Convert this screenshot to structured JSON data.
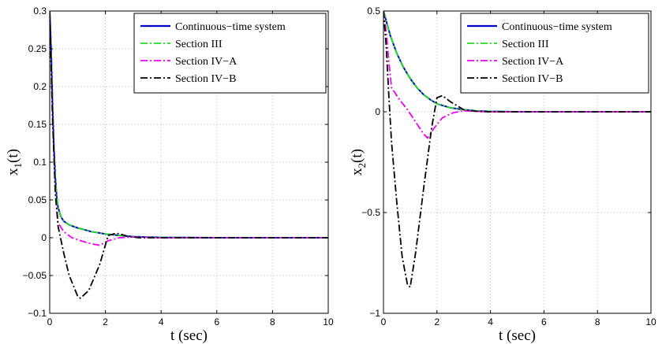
{
  "chart_data": [
    {
      "type": "line",
      "xlabel": "t (sec)",
      "ylabel": "x",
      "ylabel_sub": "1",
      "ylabel_tail": "(t)",
      "xlim": [
        0,
        10
      ],
      "ylim": [
        -0.1,
        0.3
      ],
      "xticks": [
        0,
        2,
        4,
        6,
        8,
        10
      ],
      "xtick_labels": [
        "0",
        "2",
        "4",
        "6",
        "8",
        "10"
      ],
      "yticks": [
        -0.1,
        -0.05,
        0,
        0.05,
        0.1,
        0.15,
        0.2,
        0.25,
        0.3
      ],
      "ytick_labels": [
        "−0.1",
        "−0.05",
        "0",
        "0.05",
        "0.1",
        "0.15",
        "0.2",
        "0.25",
        "0.3"
      ],
      "grid": true,
      "legend_position": "top-right",
      "series": [
        {
          "name": "Continuous−time system",
          "color": "#0000cc",
          "dash": "solid",
          "x": [
            0,
            0.05,
            0.1,
            0.15,
            0.2,
            0.25,
            0.3,
            0.4,
            0.5,
            0.7,
            1.0,
            1.5,
            2.0,
            2.5,
            3.0,
            4.0,
            6.0,
            10.0
          ],
          "y": [
            0.3,
            0.25,
            0.18,
            0.12,
            0.08,
            0.055,
            0.04,
            0.028,
            0.022,
            0.017,
            0.013,
            0.008,
            0.005,
            0.003,
            0.0015,
            0.0004,
            0,
            0
          ]
        },
        {
          "name": "Section III",
          "color": "#22dd22",
          "dash": "dashdot",
          "x": [
            0,
            0.05,
            0.1,
            0.15,
            0.2,
            0.25,
            0.3,
            0.4,
            0.5,
            0.7,
            1.0,
            1.5,
            2.0,
            2.5,
            3.0,
            4.0,
            6.0,
            10.0
          ],
          "y": [
            0.3,
            0.25,
            0.18,
            0.12,
            0.08,
            0.055,
            0.04,
            0.028,
            0.022,
            0.017,
            0.013,
            0.008,
            0.005,
            0.003,
            0.0015,
            0.0004,
            0,
            0
          ]
        },
        {
          "name": "Section IV−A",
          "color": "#ee00ee",
          "dash": "dashdot",
          "x": [
            0,
            0.1,
            0.2,
            0.3,
            0.5,
            0.8,
            1.2,
            1.5,
            1.8,
            2.1,
            2.5,
            3.0,
            4.0,
            10.0
          ],
          "y": [
            0.3,
            0.17,
            0.06,
            0.02,
            0.008,
            0.0,
            -0.005,
            -0.008,
            -0.01,
            -0.004,
            0.0,
            0.001,
            0.0,
            0.0
          ]
        },
        {
          "name": "Section IV−B",
          "color": "#000000",
          "dash": "dashdot",
          "x": [
            0,
            0.1,
            0.2,
            0.3,
            0.5,
            0.7,
            1.0,
            1.1,
            1.4,
            1.8,
            2.1,
            2.4,
            2.8,
            3.2,
            4.0,
            10.0
          ],
          "y": [
            0.3,
            0.16,
            0.06,
            0.015,
            -0.02,
            -0.05,
            -0.077,
            -0.08,
            -0.07,
            -0.035,
            0.003,
            0.006,
            0.002,
            0.0,
            0.0,
            0.0
          ]
        }
      ]
    },
    {
      "type": "line",
      "xlabel": "t (sec)",
      "ylabel": "x",
      "ylabel_sub": "2",
      "ylabel_tail": "(t)",
      "xlim": [
        0,
        10
      ],
      "ylim": [
        -1,
        0.5
      ],
      "xticks": [
        0,
        2,
        4,
        6,
        8,
        10
      ],
      "xtick_labels": [
        "0",
        "2",
        "4",
        "6",
        "8",
        "10"
      ],
      "yticks": [
        -1,
        -0.5,
        0,
        0.5
      ],
      "ytick_labels": [
        "−1",
        "−0.5",
        "0",
        "0.5"
      ],
      "grid": true,
      "legend_position": "top-right",
      "series": [
        {
          "name": "Continuous−time system",
          "color": "#0000cc",
          "dash": "solid",
          "x": [
            0,
            0.25,
            0.5,
            0.75,
            1.0,
            1.25,
            1.5,
            1.75,
            2.0,
            2.5,
            3.0,
            3.5,
            4.0,
            5.0,
            10.0
          ],
          "y": [
            0.5,
            0.38,
            0.29,
            0.22,
            0.165,
            0.12,
            0.085,
            0.06,
            0.04,
            0.02,
            0.01,
            0.004,
            0.002,
            0,
            0
          ]
        },
        {
          "name": "Section III",
          "color": "#22dd22",
          "dash": "dashdot",
          "x": [
            0,
            0.25,
            0.5,
            0.75,
            1.0,
            1.25,
            1.5,
            1.75,
            2.0,
            2.5,
            3.0,
            3.5,
            4.0,
            5.0,
            10.0
          ],
          "y": [
            0.5,
            0.38,
            0.29,
            0.22,
            0.165,
            0.12,
            0.085,
            0.06,
            0.04,
            0.02,
            0.01,
            0.004,
            0.002,
            0,
            0
          ]
        },
        {
          "name": "Section IV−A",
          "color": "#ee00ee",
          "dash": "dashdot",
          "x": [
            0,
            0.1,
            0.2,
            0.3,
            0.6,
            0.9,
            1.2,
            1.5,
            1.65,
            1.9,
            2.2,
            2.6,
            3.0,
            3.5,
            4.0,
            10.0
          ],
          "y": [
            0.5,
            0.4,
            0.25,
            0.12,
            0.06,
            0.01,
            -0.05,
            -0.11,
            -0.13,
            -0.08,
            -0.03,
            -0.005,
            0.005,
            0.002,
            0,
            0
          ]
        },
        {
          "name": "Section IV−B",
          "color": "#000000",
          "dash": "dashdot",
          "x": [
            0,
            0.1,
            0.2,
            0.3,
            0.5,
            0.7,
            0.9,
            1.0,
            1.2,
            1.5,
            1.8,
            2.0,
            2.2,
            2.5,
            3.0,
            3.5,
            4.0,
            10.0
          ],
          "y": [
            0.5,
            0.33,
            0.08,
            -0.15,
            -0.45,
            -0.72,
            -0.86,
            -0.87,
            -0.7,
            -0.38,
            -0.08,
            0.07,
            0.08,
            0.05,
            0.01,
            0.002,
            0,
            0
          ]
        }
      ]
    }
  ]
}
